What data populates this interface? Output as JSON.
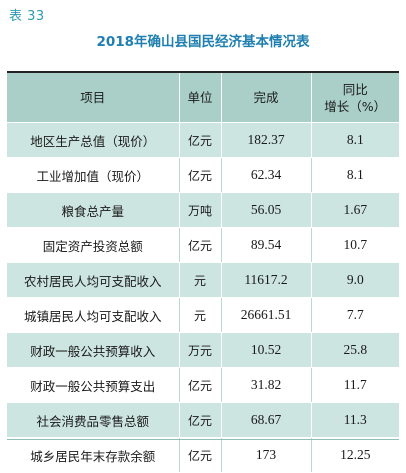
{
  "table_label": "表 33",
  "title": "2018年确山县国民经济基本情况表",
  "headers": {
    "item": "项目",
    "unit": "单位",
    "value": "完成",
    "growth_line1": "同比",
    "growth_line2": "增长（%）"
  },
  "rows": [
    {
      "item": "地区生产总值（现价）",
      "unit": "亿元",
      "value": "182.37",
      "growth": "8.1"
    },
    {
      "item": "工业增加值（现价）",
      "unit": "亿元",
      "value": "62.34",
      "growth": "8.1"
    },
    {
      "item": "粮食总产量",
      "unit": "万吨",
      "value": "56.05",
      "growth": "1.67"
    },
    {
      "item": "固定资产投资总额",
      "unit": "亿元",
      "value": "89.54",
      "growth": "10.7"
    },
    {
      "item": "农村居民人均可支配收入",
      "unit": "元",
      "value": "11617.2",
      "growth": "9.0"
    },
    {
      "item": "城镇居民人均可支配收入",
      "unit": "元",
      "value": "26661.51",
      "growth": "7.7"
    },
    {
      "item": "财政一般公共预算收入",
      "unit": "万元",
      "value": "10.52",
      "growth": "25.8"
    },
    {
      "item": "财政一般公共预算支出",
      "unit": "亿元",
      "value": "31.82",
      "growth": "11.7"
    },
    {
      "item": "社会消费品零售总额",
      "unit": "亿元",
      "value": "68.67",
      "growth": "11.3"
    },
    {
      "item": "城乡居民年末存款余额",
      "unit": "亿元",
      "value": "173",
      "growth": "12.25"
    }
  ]
}
